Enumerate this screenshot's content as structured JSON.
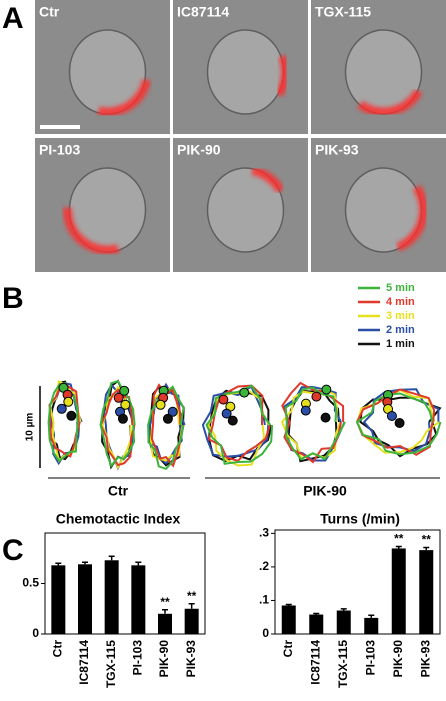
{
  "panels": {
    "A": {
      "label": "A",
      "images": [
        "Ctr",
        "IC87114",
        "TGX-115",
        "PI-103",
        "PIK-90",
        "PIK-93"
      ]
    },
    "B": {
      "label": "B",
      "legend": [
        {
          "name": "5 min",
          "color": "#3cb43c"
        },
        {
          "name": "4 min",
          "color": "#e0392a"
        },
        {
          "name": "3 min",
          "color": "#e6df1e"
        },
        {
          "name": "2 min",
          "color": "#2b4ea6"
        },
        {
          "name": "1 min",
          "color": "#111111"
        }
      ],
      "scale_label": "10 µm",
      "groups": [
        "Ctr",
        "PIK-90"
      ]
    },
    "C": {
      "label": "C"
    }
  },
  "chart_data": [
    {
      "type": "bar",
      "title": "Chemotactic Index",
      "categories": [
        "Ctr",
        "IC87114",
        "TGX-115",
        "PI-103",
        "PIK-90",
        "PIK-93"
      ],
      "values": [
        0.68,
        0.69,
        0.73,
        0.68,
        0.2,
        0.25
      ],
      "errors": [
        0.02,
        0.02,
        0.04,
        0.03,
        0.04,
        0.05
      ],
      "value_annotations": [
        null,
        null,
        null,
        null,
        "**",
        "**"
      ],
      "color": "#000000",
      "ylim": [
        0,
        1.0
      ],
      "yticks": [
        0,
        0.5
      ]
    },
    {
      "type": "bar",
      "title": "Turns (/min)",
      "categories": [
        "Ctr",
        "IC87114",
        "TGX-115",
        "PI-103",
        "PIK-90",
        "PIK-93"
      ],
      "values": [
        0.085,
        0.058,
        0.07,
        0.048,
        0.255,
        0.25
      ],
      "errors": [
        0.003,
        0.003,
        0.005,
        0.008,
        0.006,
        0.008
      ],
      "value_annotations": [
        null,
        null,
        null,
        null,
        "**",
        "**"
      ],
      "color": "#000000",
      "ylim": [
        0,
        0.31
      ],
      "yticks": [
        0,
        {
          "value": 0.1,
          "label": ".1"
        },
        {
          "value": 0.2,
          "label": ".2"
        },
        {
          "value": 0.3,
          "label": ".3"
        }
      ]
    }
  ]
}
